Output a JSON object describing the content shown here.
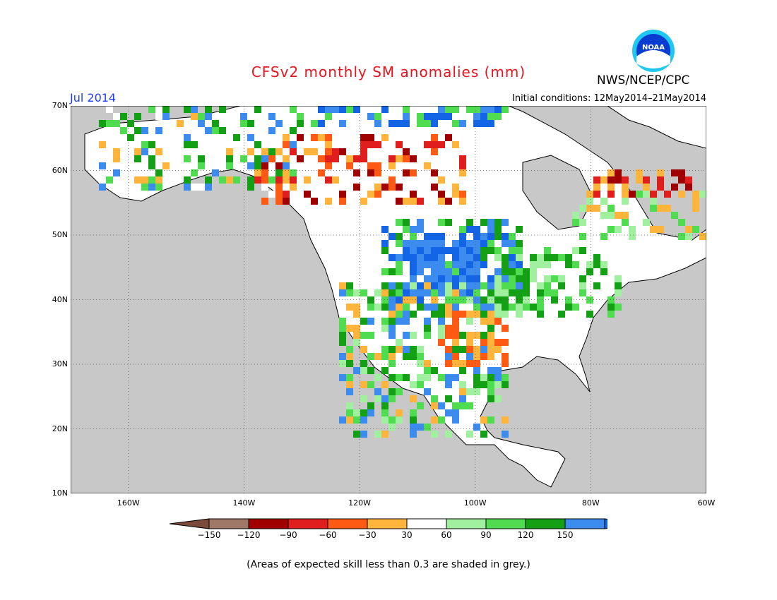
{
  "title": "CFSv2 monthly SM anomalies (mm)",
  "target_month": "Jul 2014",
  "initial_conditions": "Initial conditions: 12May2014–21May2014",
  "agency": "NWS/NCEP/CPC",
  "logo_text": "NOAA",
  "logo_name": "noaa-logo",
  "footnote": "(Areas of expected skill less than 0.3 are shaded in grey.)",
  "map": {
    "lon_range": [
      -170,
      -60
    ],
    "lat_range": [
      10,
      70
    ],
    "ocean_color": "#c8c8c8",
    "lat_labels": [
      "70N",
      "60N",
      "50N",
      "40N",
      "30N",
      "20N",
      "10N"
    ],
    "lon_labels": [
      "160W",
      "140W",
      "120W",
      "100W",
      "80W",
      "60W"
    ]
  },
  "colorbar": {
    "labels": [
      "−150",
      "−120",
      "−90",
      "−60",
      "−30",
      "30",
      "60",
      "90",
      "120",
      "150"
    ],
    "colors": [
      "#7a4a3a",
      "#a07868",
      "#a00000",
      "#e01e1e",
      "#ff5a14",
      "#ffb43c",
      "#ffffff",
      "#a0f0a0",
      "#50dc50",
      "#14a014",
      "#3c8cf0",
      "#1464e6"
    ]
  },
  "regions": [
    {
      "name": "us-midwest",
      "desc": "wet",
      "color": "#1e6ee6"
    },
    {
      "name": "canada-west",
      "desc": "dry",
      "color": "#ffb43c"
    }
  ]
}
